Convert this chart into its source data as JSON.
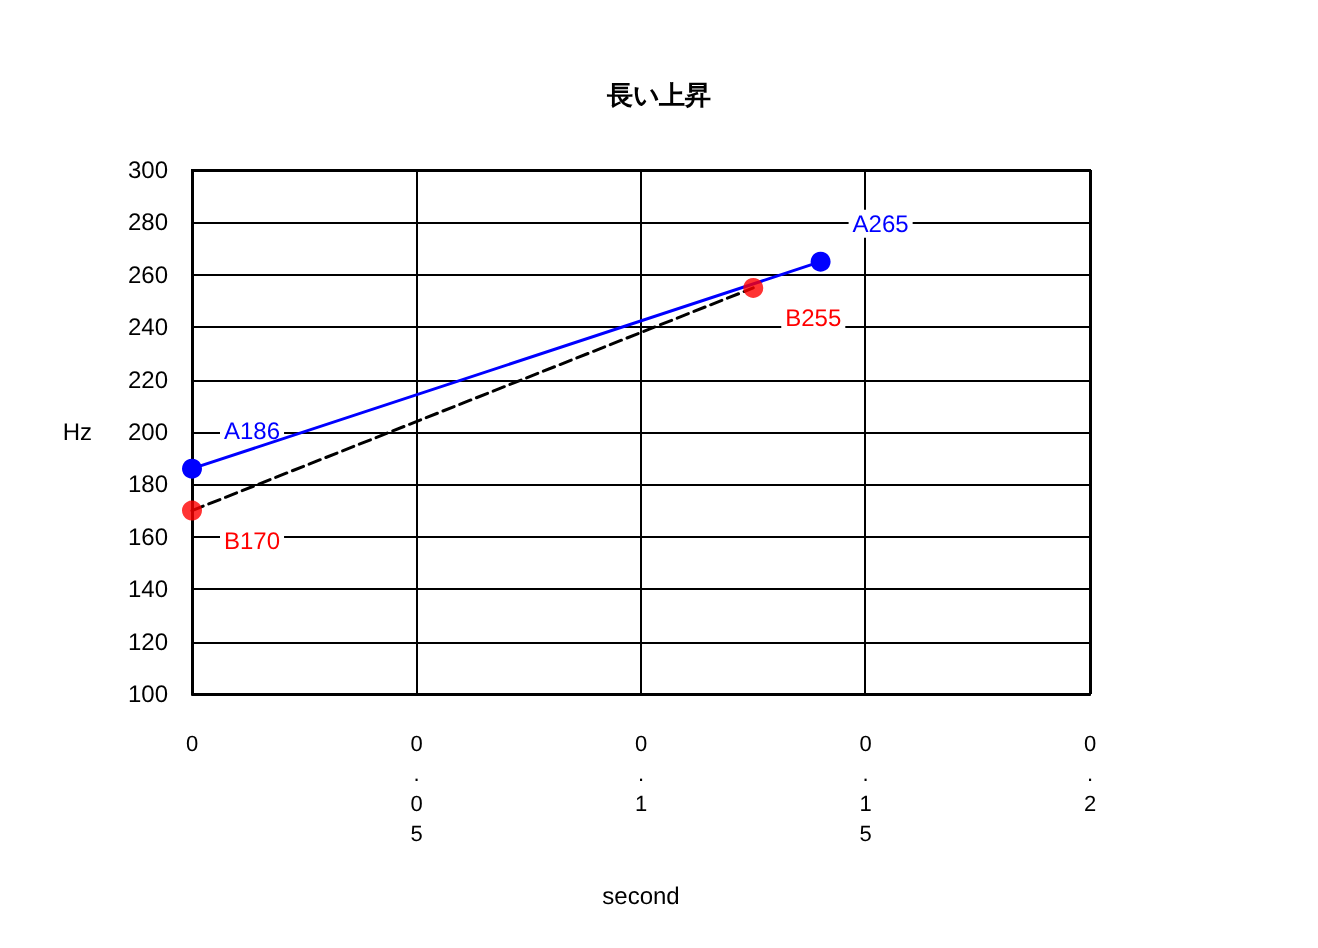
{
  "chart_data": {
    "type": "line",
    "title": "長い上昇",
    "xlabel": "second",
    "ylabel": "Hz",
    "xlim": [
      0,
      0.2
    ],
    "xticks": [
      0,
      0.05,
      0.1,
      0.15,
      0.2
    ],
    "ylim": [
      100,
      300
    ],
    "yticks": [
      100,
      120,
      140,
      160,
      180,
      200,
      220,
      240,
      260,
      280,
      300
    ],
    "grid": true,
    "series": [
      {
        "color": "#0000ff",
        "x": [
          0,
          0.14
        ],
        "values": [
          186,
          265
        ],
        "marker": "circle",
        "line_style": "solid"
      },
      {
        "type": "line",
        "color": "#000000",
        "x": [
          0,
          0.125
        ],
        "values": [
          170,
          255
        ],
        "marker": "none",
        "line_style": "dashed"
      },
      {
        "type": "scatter",
        "color": "#ff0000",
        "x": [
          0,
          0.125
        ],
        "values": [
          170,
          255
        ],
        "marker": "circle"
      }
    ],
    "annotations": [
      {
        "text": "A186",
        "x": 0,
        "y": 186
      },
      {
        "text": "A265",
        "x": 0.14,
        "y": 265
      },
      {
        "text": "B170",
        "x": 0,
        "y": 170
      },
      {
        "text": "B255",
        "x": 0.125,
        "y": 255
      }
    ]
  }
}
